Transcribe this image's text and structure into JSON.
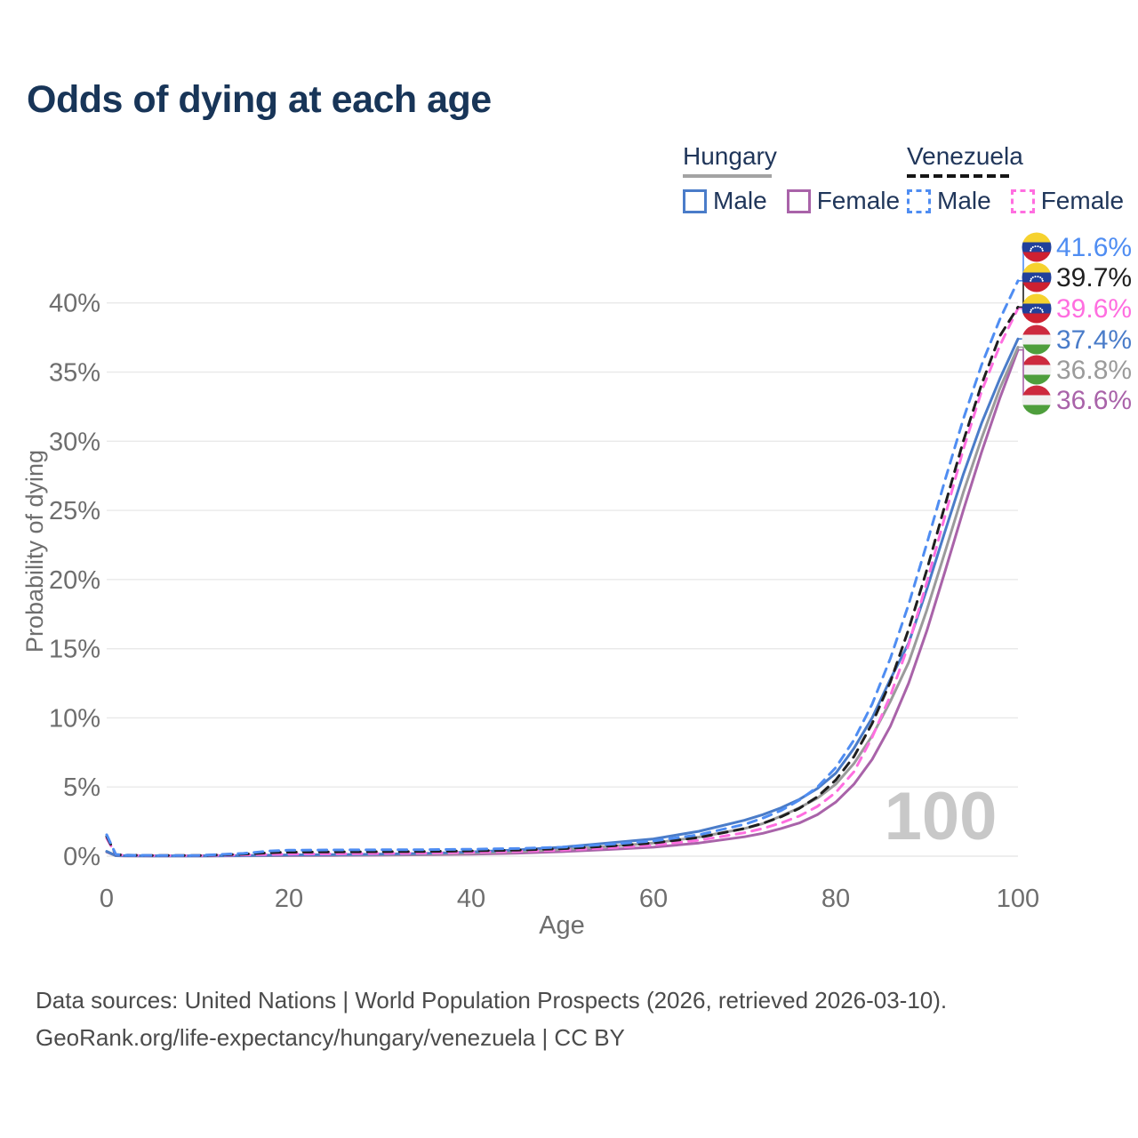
{
  "title": "Odds of dying at each age",
  "legend": {
    "groups": [
      {
        "country": "Hungary",
        "line_style": "solid",
        "underline_color": "#a3a3a3",
        "items": [
          {
            "label": "Male",
            "color": "#4a7cc9",
            "dashed": false
          },
          {
            "label": "Female",
            "color": "#a963a9",
            "dashed": false
          }
        ]
      },
      {
        "country": "Venezuela",
        "line_style": "dashed",
        "underline_color": "#161616",
        "items": [
          {
            "label": "Male",
            "color": "#4f8df2",
            "dashed": true
          },
          {
            "label": "Female",
            "color": "#ff6ee0",
            "dashed": true
          }
        ]
      }
    ]
  },
  "colors": {
    "title": "#183558",
    "axis_text": "#6e6e6e",
    "grid": "#e9e9e9",
    "watermark": "#c8c8c8",
    "footer_text": "#4b4b4b",
    "legend_text": "#20365a",
    "flags": {
      "venezuela": [
        "#F6D22E",
        "#21409A",
        "#CE2131"
      ],
      "hungary": [
        "#CD2A3E",
        "#F1F1F1",
        "#4E9E3C"
      ]
    }
  },
  "chart_data": {
    "type": "line",
    "title": "Odds of dying at each age",
    "xlabel": "Age",
    "ylabel": "Probability of dying",
    "xlim": [
      0,
      100
    ],
    "ylim": [
      0,
      43
    ],
    "grid": "horizontal",
    "legend_position": "top-right",
    "watermark": "100",
    "x_ticks": [
      {
        "label": "0",
        "value": 0
      },
      {
        "label": "20",
        "value": 20
      },
      {
        "label": "40",
        "value": 40
      },
      {
        "label": "60",
        "value": 60
      },
      {
        "label": "80",
        "value": 80
      },
      {
        "label": "100",
        "value": 100
      }
    ],
    "y_ticks": [
      {
        "label": "0%",
        "value": 0
      },
      {
        "label": "5%",
        "value": 5
      },
      {
        "label": "10%",
        "value": 10
      },
      {
        "label": "15%",
        "value": 15
      },
      {
        "label": "20%",
        "value": 20
      },
      {
        "label": "25%",
        "value": 25
      },
      {
        "label": "30%",
        "value": 30
      },
      {
        "label": "35%",
        "value": 35
      },
      {
        "label": "40%",
        "value": 40
      }
    ],
    "x": [
      0,
      1,
      2,
      5,
      10,
      15,
      18,
      20,
      25,
      30,
      35,
      40,
      45,
      50,
      55,
      60,
      65,
      70,
      72,
      74,
      76,
      78,
      80,
      82,
      84,
      86,
      88,
      90,
      92,
      94,
      96,
      98,
      100
    ],
    "series": [
      {
        "name": "Venezuela Male",
        "country": "venezuela",
        "sex": "male",
        "color": "#4f8df2",
        "dashed": true,
        "end_label": "41.6%",
        "values": [
          1.55,
          0.12,
          0.08,
          0.05,
          0.05,
          0.2,
          0.38,
          0.43,
          0.45,
          0.46,
          0.47,
          0.5,
          0.55,
          0.65,
          0.85,
          1.1,
          1.55,
          2.3,
          2.75,
          3.3,
          4.05,
          5.0,
          6.4,
          8.4,
          11.0,
          14.3,
          18.2,
          22.6,
          27.2,
          31.6,
          35.5,
          38.8,
          41.6
        ]
      },
      {
        "name": "Venezuela Both sexes",
        "country": "venezuela",
        "sex": "both",
        "color": "#1f1f1f",
        "dashed": true,
        "end_label": "39.7%",
        "values": [
          1.43,
          0.11,
          0.075,
          0.045,
          0.045,
          0.145,
          0.25,
          0.29,
          0.31,
          0.32,
          0.34,
          0.38,
          0.44,
          0.54,
          0.72,
          0.95,
          1.35,
          2.0,
          2.37,
          2.85,
          3.45,
          4.3,
          5.5,
          7.2,
          9.6,
          12.6,
          16.4,
          20.7,
          25.4,
          30.0,
          34.1,
          37.6,
          39.7
        ]
      },
      {
        "name": "Venezuela Female",
        "country": "venezuela",
        "sex": "female",
        "color": "#ff6ee0",
        "dashed": true,
        "end_label": "39.6%",
        "values": [
          1.3,
          0.1,
          0.07,
          0.04,
          0.04,
          0.09,
          0.13,
          0.15,
          0.17,
          0.19,
          0.22,
          0.27,
          0.34,
          0.44,
          0.6,
          0.8,
          1.15,
          1.7,
          2.0,
          2.4,
          2.9,
          3.6,
          4.6,
          6.1,
          8.6,
          11.6,
          15.3,
          19.8,
          24.6,
          29.4,
          33.6,
          36.9,
          39.6
        ]
      },
      {
        "name": "Hungary Male",
        "country": "hungary",
        "sex": "male",
        "color": "#4a7cc9",
        "dashed": false,
        "end_label": "37.4%",
        "values": [
          0.35,
          0.04,
          0.03,
          0.02,
          0.02,
          0.04,
          0.07,
          0.09,
          0.11,
          0.14,
          0.2,
          0.3,
          0.45,
          0.65,
          0.95,
          1.25,
          1.8,
          2.6,
          3.0,
          3.5,
          4.1,
          4.9,
          6.0,
          7.8,
          10.0,
          12.8,
          15.4,
          19.3,
          23.5,
          27.6,
          31.3,
          34.5,
          37.4
        ]
      },
      {
        "name": "Hungary Both sexes",
        "country": "hungary",
        "sex": "both",
        "color": "#9b9b9b",
        "dashed": false,
        "end_label": "36.8%",
        "values": [
          0.33,
          0.035,
          0.025,
          0.018,
          0.018,
          0.033,
          0.05,
          0.065,
          0.08,
          0.1,
          0.15,
          0.22,
          0.33,
          0.48,
          0.7,
          0.95,
          1.38,
          2.0,
          2.35,
          2.9,
          3.5,
          4.2,
          5.2,
          6.7,
          8.7,
          11.2,
          14.0,
          17.8,
          22.0,
          26.3,
          30.2,
          33.8,
          36.8
        ]
      },
      {
        "name": "Hungary Female",
        "country": "hungary",
        "sex": "female",
        "color": "#a963a9",
        "dashed": false,
        "end_label": "36.6%",
        "values": [
          0.3,
          0.03,
          0.02,
          0.015,
          0.015,
          0.025,
          0.035,
          0.04,
          0.05,
          0.07,
          0.1,
          0.15,
          0.22,
          0.33,
          0.48,
          0.65,
          0.95,
          1.4,
          1.65,
          2.0,
          2.4,
          3.0,
          3.9,
          5.2,
          7.0,
          9.4,
          12.5,
          16.3,
          20.6,
          25.0,
          29.2,
          33.1,
          36.6
        ]
      }
    ]
  },
  "footer": {
    "line1": "Data sources: United Nations | World Population Prospects (2026, retrieved 2026-03-10).",
    "line2": "GeoRank.org/life-expectancy/hungary/venezuela | CC BY"
  }
}
